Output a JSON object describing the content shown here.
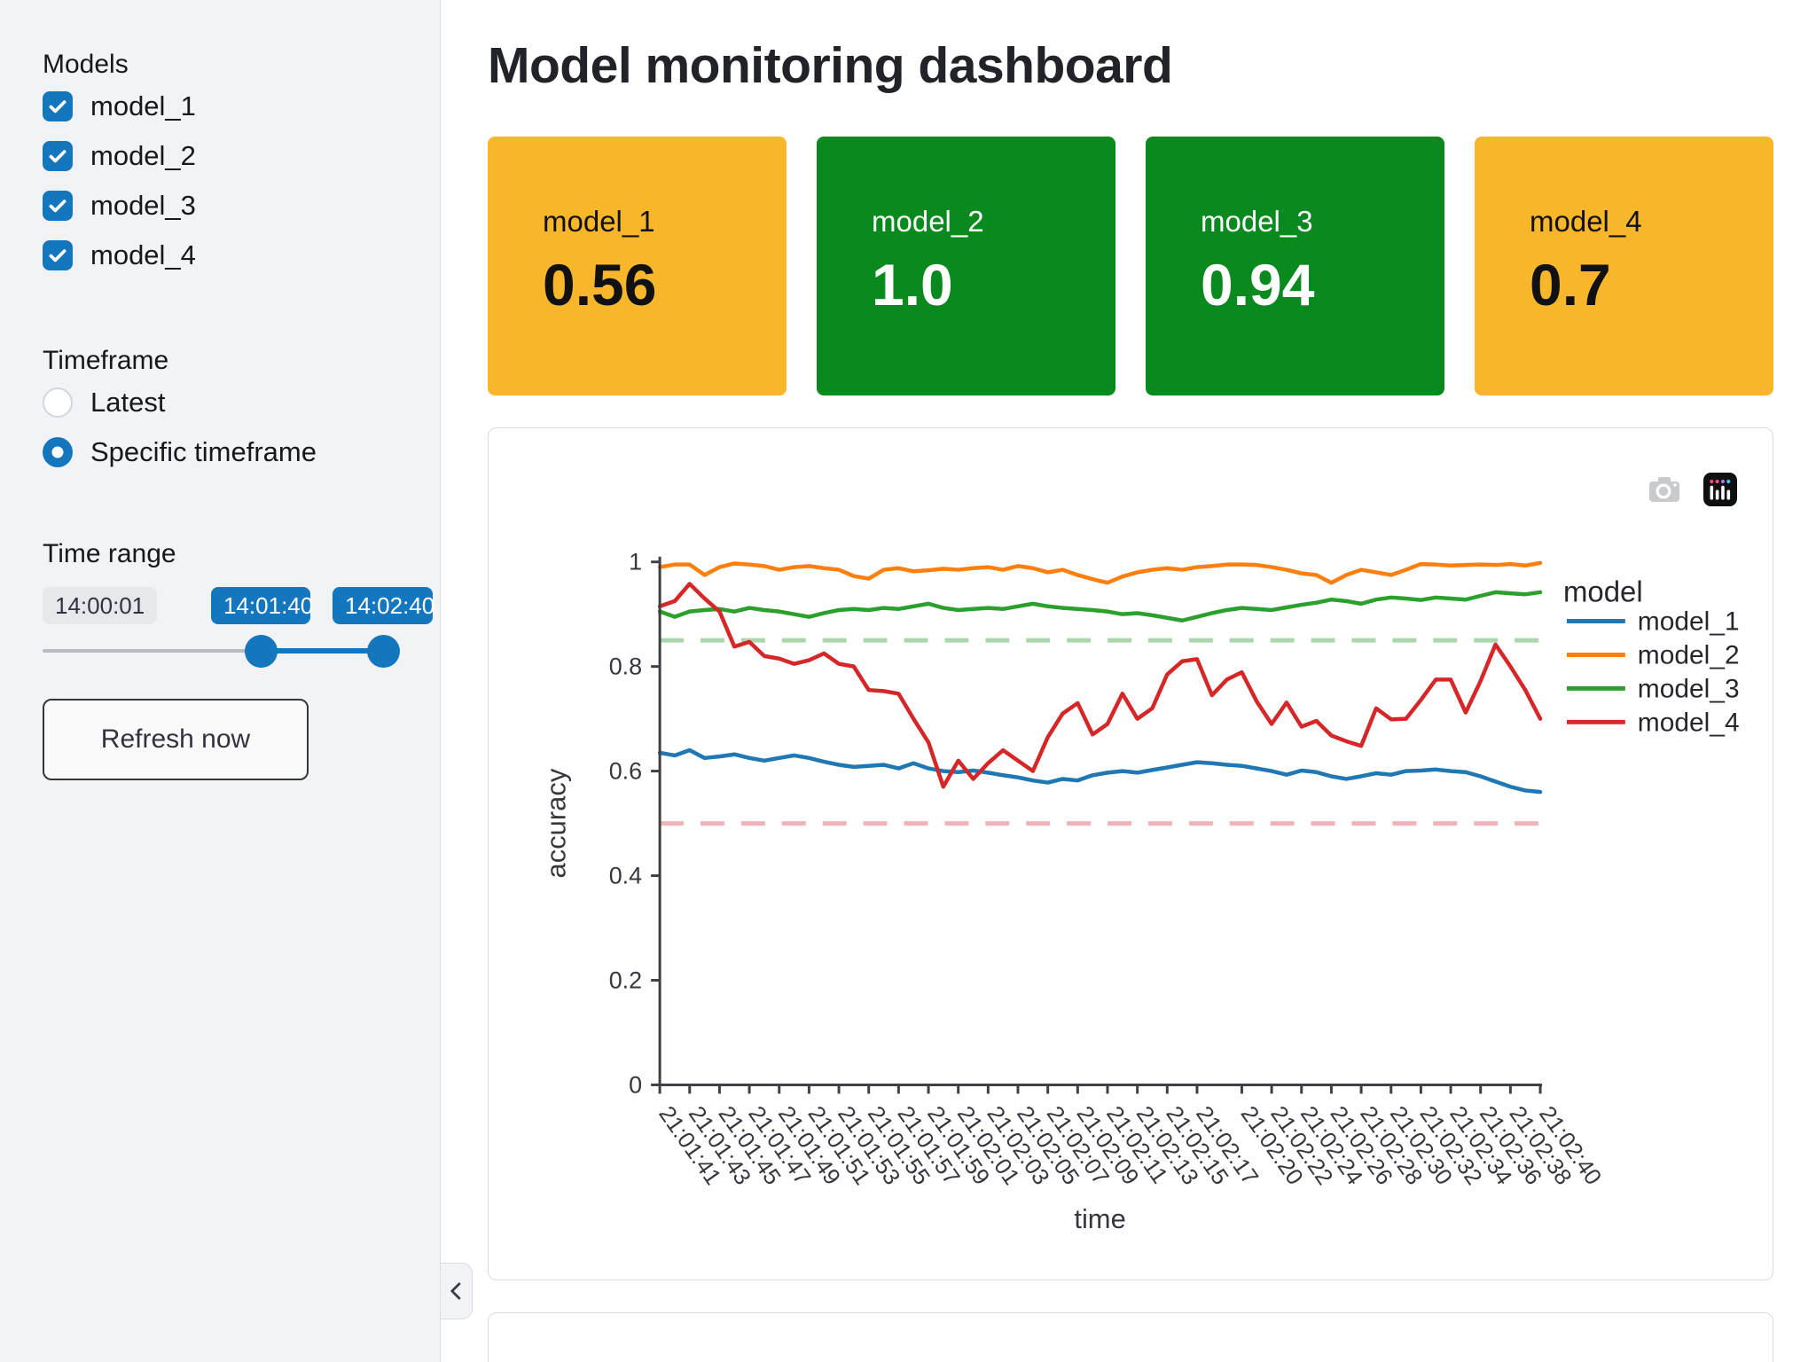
{
  "sidebar": {
    "models_label": "Models",
    "models": [
      {
        "label": "model_1",
        "checked": true
      },
      {
        "label": "model_2",
        "checked": true
      },
      {
        "label": "model_3",
        "checked": true
      },
      {
        "label": "model_4",
        "checked": true
      }
    ],
    "timeframe_label": "Timeframe",
    "timeframe_options": [
      {
        "label": "Latest",
        "selected": false
      },
      {
        "label": "Specific timeframe",
        "selected": true
      }
    ],
    "time_range_label": "Time range",
    "slider": {
      "min_label": "14:00:01",
      "lower_value": "14:01:40",
      "upper_value": "14:02:40",
      "lower_pct": 64,
      "upper_pct": 100
    },
    "refresh_label": "Refresh now"
  },
  "main": {
    "title": "Model monitoring dashboard"
  },
  "metric_cards": [
    {
      "label": "model_1",
      "value": "0.56",
      "color": "#f8b62a",
      "text_color": "#111111"
    },
    {
      "label": "model_2",
      "value": "1.0",
      "color": "#0a8a1e",
      "text_color": "#ffffff"
    },
    {
      "label": "model_3",
      "value": "0.94",
      "color": "#0a8a1e",
      "text_color": "#ffffff"
    },
    {
      "label": "model_4",
      "value": "0.7",
      "color": "#f8b62a",
      "text_color": "#111111"
    }
  ],
  "modebar": {
    "icons": [
      "camera-download-icon",
      "plotly-logo-icon"
    ]
  },
  "colors": {
    "accent": "#1476bd",
    "status_ok": "#0a8a1e",
    "status_warn": "#f8b62a"
  },
  "chart_data": {
    "type": "line",
    "xlabel": "time",
    "ylabel": "accuracy",
    "legend_title": "model",
    "legend_position": "right",
    "ylim": [
      0,
      1
    ],
    "yticks": [
      0,
      0.2,
      0.4,
      0.6,
      0.8,
      1
    ],
    "x_start": "21:01:41",
    "x_end": "21:02:40",
    "x_step_seconds": 1,
    "xticks": [
      {
        "label": "21:01:41",
        "t": 0
      },
      {
        "label": "21:01:43",
        "t": 2
      },
      {
        "label": "21:01:45",
        "t": 4
      },
      {
        "label": "21:01:47",
        "t": 6
      },
      {
        "label": "21:01:49",
        "t": 8
      },
      {
        "label": "21:01:51",
        "t": 10
      },
      {
        "label": "21:01:53",
        "t": 12
      },
      {
        "label": "21:01:55",
        "t": 14
      },
      {
        "label": "21:01:57",
        "t": 16
      },
      {
        "label": "21:01:59",
        "t": 18
      },
      {
        "label": "21:02:01",
        "t": 20
      },
      {
        "label": "21:02:03",
        "t": 22
      },
      {
        "label": "21:02:05",
        "t": 24
      },
      {
        "label": "21:02:07",
        "t": 26
      },
      {
        "label": "21:02:09",
        "t": 28
      },
      {
        "label": "21:02:11",
        "t": 30
      },
      {
        "label": "21:02:13",
        "t": 32
      },
      {
        "label": "21:02:15",
        "t": 34
      },
      {
        "label": "21:02:17",
        "t": 36
      },
      {
        "label": "21:02:20",
        "t": 39
      },
      {
        "label": "21:02:22",
        "t": 41
      },
      {
        "label": "21:02:24",
        "t": 43
      },
      {
        "label": "21:02:26",
        "t": 45
      },
      {
        "label": "21:02:28",
        "t": 47
      },
      {
        "label": "21:02:30",
        "t": 49
      },
      {
        "label": "21:02:32",
        "t": 51
      },
      {
        "label": "21:02:34",
        "t": 53
      },
      {
        "label": "21:02:36",
        "t": 55
      },
      {
        "label": "21:02:38",
        "t": 57
      },
      {
        "label": "21:02:40",
        "t": 59
      }
    ],
    "reference_lines": [
      {
        "value": 0.85,
        "color": "#abd8ab",
        "style": "dashed"
      },
      {
        "value": 0.5,
        "color": "#f1b3b7",
        "style": "dashed"
      }
    ],
    "series": [
      {
        "name": "model_1",
        "color": "#1f77b4",
        "values": [
          0.635,
          0.63,
          0.64,
          0.625,
          0.628,
          0.632,
          0.625,
          0.62,
          0.625,
          0.63,
          0.625,
          0.618,
          0.612,
          0.608,
          0.61,
          0.612,
          0.605,
          0.615,
          0.605,
          0.6,
          0.598,
          0.601,
          0.597,
          0.592,
          0.588,
          0.582,
          0.578,
          0.585,
          0.582,
          0.592,
          0.597,
          0.6,
          0.597,
          0.602,
          0.607,
          0.612,
          0.617,
          0.615,
          0.612,
          0.61,
          0.605,
          0.6,
          0.593,
          0.601,
          0.598,
          0.59,
          0.585,
          0.59,
          0.596,
          0.593,
          0.6,
          0.601,
          0.603,
          0.6,
          0.598,
          0.59,
          0.58,
          0.57,
          0.563,
          0.56
        ]
      },
      {
        "name": "model_2",
        "color": "#ff7f0e",
        "values": [
          0.99,
          0.995,
          0.995,
          0.975,
          0.99,
          0.997,
          0.995,
          0.992,
          0.985,
          0.99,
          0.992,
          0.988,
          0.985,
          0.973,
          0.968,
          0.985,
          0.988,
          0.982,
          0.984,
          0.987,
          0.985,
          0.988,
          0.99,
          0.985,
          0.992,
          0.988,
          0.98,
          0.985,
          0.975,
          0.967,
          0.96,
          0.972,
          0.98,
          0.985,
          0.988,
          0.985,
          0.99,
          0.992,
          0.995,
          0.995,
          0.994,
          0.99,
          0.985,
          0.978,
          0.975,
          0.96,
          0.975,
          0.985,
          0.98,
          0.975,
          0.985,
          0.996,
          0.995,
          0.993,
          0.994,
          0.995,
          0.994,
          0.996,
          0.993,
          0.998
        ]
      },
      {
        "name": "model_3",
        "color": "#2ca02c",
        "values": [
          0.905,
          0.895,
          0.905,
          0.908,
          0.91,
          0.905,
          0.912,
          0.908,
          0.905,
          0.9,
          0.895,
          0.902,
          0.908,
          0.91,
          0.908,
          0.912,
          0.91,
          0.915,
          0.92,
          0.912,
          0.908,
          0.91,
          0.912,
          0.91,
          0.915,
          0.92,
          0.915,
          0.912,
          0.91,
          0.908,
          0.905,
          0.9,
          0.902,
          0.898,
          0.893,
          0.888,
          0.895,
          0.902,
          0.908,
          0.912,
          0.91,
          0.908,
          0.913,
          0.918,
          0.922,
          0.928,
          0.925,
          0.92,
          0.928,
          0.932,
          0.93,
          0.927,
          0.932,
          0.93,
          0.928,
          0.935,
          0.942,
          0.94,
          0.938,
          0.942
        ]
      },
      {
        "name": "model_4",
        "color": "#d62728",
        "values": [
          0.915,
          0.925,
          0.958,
          0.93,
          0.905,
          0.838,
          0.847,
          0.82,
          0.815,
          0.805,
          0.812,
          0.825,
          0.805,
          0.8,
          0.755,
          0.753,
          0.748,
          0.7,
          0.655,
          0.57,
          0.62,
          0.585,
          0.615,
          0.64,
          0.62,
          0.6,
          0.665,
          0.71,
          0.73,
          0.67,
          0.69,
          0.748,
          0.7,
          0.72,
          0.785,
          0.81,
          0.814,
          0.745,
          0.775,
          0.789,
          0.733,
          0.69,
          0.731,
          0.685,
          0.696,
          0.668,
          0.657,
          0.648,
          0.72,
          0.699,
          0.7,
          0.736,
          0.775,
          0.775,
          0.712,
          0.772,
          0.842,
          0.8,
          0.755,
          0.7
        ]
      }
    ]
  }
}
